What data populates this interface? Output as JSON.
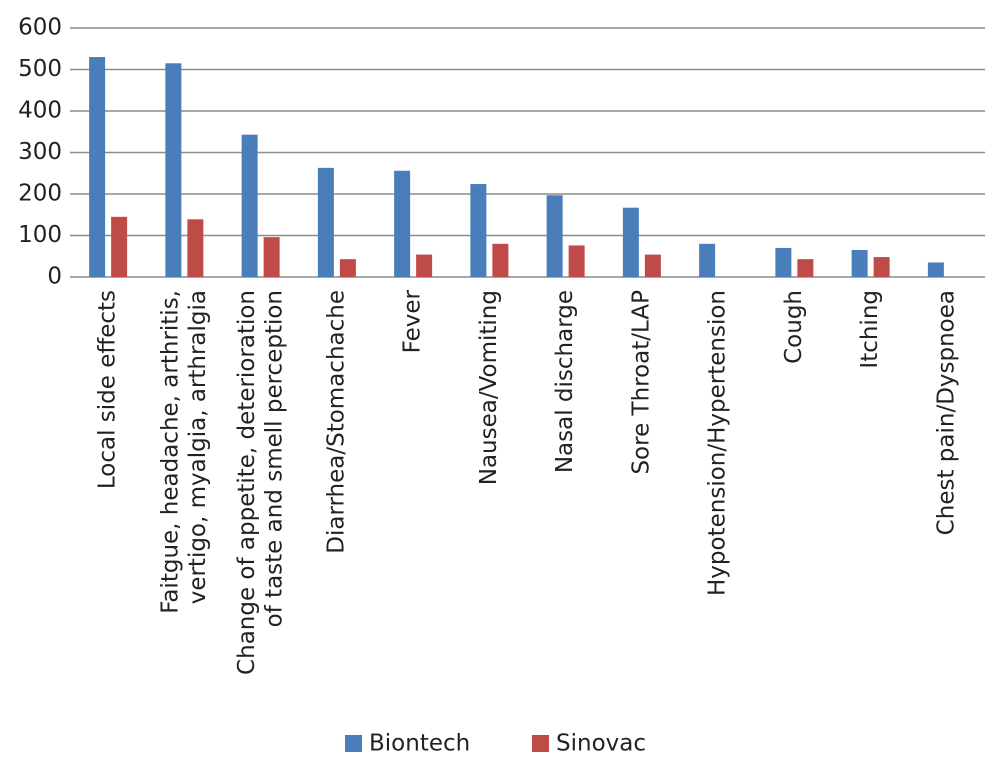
{
  "chart_data": {
    "type": "bar",
    "categories": [
      "Local side effects",
      "Faitgue, headache, arthritis,\nvertigo, myalgia, arthralgia",
      "Change of appetite, deterioration\nof taste and smell perception",
      "Diarrhea/Stomachache",
      "Fever",
      "Nausea/Vomiting",
      "Nasal discharge",
      "Sore Throat/LAP",
      "Hypotension/Hypertension",
      "Cough",
      "Itching",
      "Chest pain/Dyspnoea"
    ],
    "series": [
      {
        "name": "Biontech",
        "color": "#4a7ebb",
        "values": [
          530,
          515,
          343,
          263,
          256,
          224,
          197,
          167,
          80,
          70,
          65,
          35
        ]
      },
      {
        "name": "Sinovac",
        "color": "#be4b48",
        "values": [
          145,
          139,
          96,
          43,
          54,
          80,
          76,
          54,
          0,
          43,
          48,
          0
        ]
      }
    ],
    "ylim": [
      0,
      600
    ],
    "yticks": [
      0,
      100,
      200,
      300,
      400,
      500,
      600
    ],
    "grid": true,
    "legend": "bottom"
  }
}
